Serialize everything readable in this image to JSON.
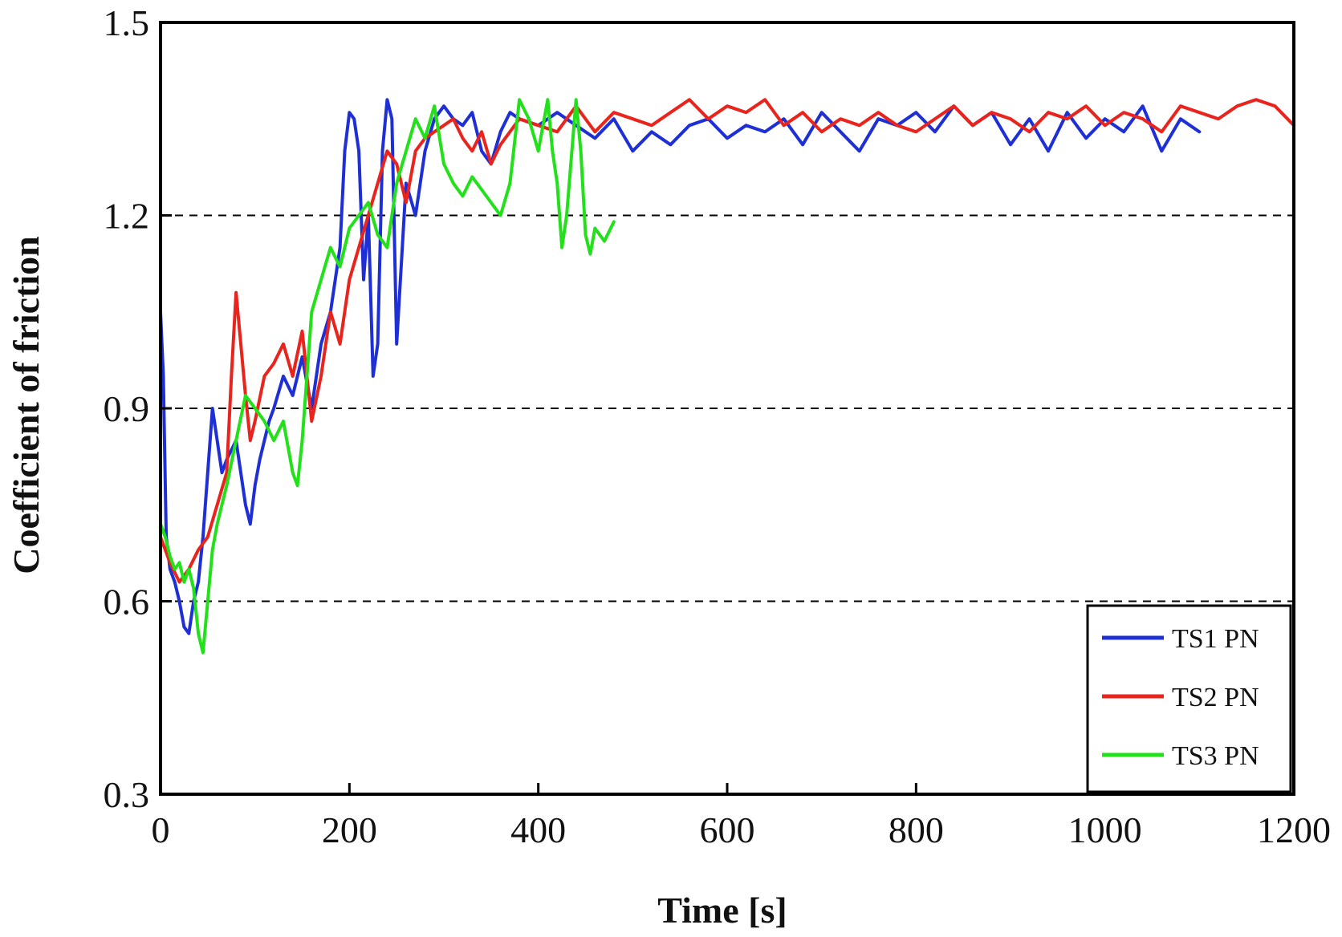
{
  "chart_data": {
    "type": "line",
    "title": "",
    "xlabel": "Time [s]",
    "ylabel": "Coefficient of friction",
    "xlim": [
      0,
      1200
    ],
    "ylim": [
      0.3,
      1.5
    ],
    "xticks": [
      0,
      200,
      400,
      600,
      800,
      1000,
      1200
    ],
    "xtick_labels": [
      "0",
      "200",
      "400",
      "600",
      "800",
      "1000",
      "1200"
    ],
    "yticks": [
      0.3,
      0.6,
      0.9,
      1.2,
      1.5
    ],
    "ytick_labels": [
      "0.3",
      "0.6",
      "0.9",
      "1.2",
      "1.5"
    ],
    "gridlines_y": [
      0.6,
      0.9,
      1.2
    ],
    "grid_style": "dashed horizontal",
    "legend_position": "bottom-right",
    "series": [
      {
        "name": "TS1 PN",
        "color": "#1f2fd6",
        "x": [
          0,
          3,
          6,
          10,
          15,
          20,
          25,
          30,
          35,
          40,
          45,
          50,
          55,
          60,
          65,
          70,
          80,
          90,
          95,
          100,
          105,
          110,
          115,
          120,
          130,
          140,
          150,
          160,
          170,
          180,
          190,
          195,
          200,
          205,
          210,
          215,
          220,
          225,
          230,
          235,
          240,
          245,
          250,
          260,
          270,
          280,
          290,
          300,
          310,
          320,
          330,
          340,
          350,
          360,
          370,
          380,
          400,
          420,
          440,
          460,
          480,
          500,
          520,
          540,
          560,
          580,
          600,
          620,
          640,
          660,
          680,
          700,
          720,
          740,
          760,
          780,
          800,
          820,
          840,
          860,
          880,
          900,
          920,
          940,
          960,
          980,
          1000,
          1020,
          1040,
          1060,
          1080,
          1100
        ],
        "y": [
          1.05,
          0.95,
          0.7,
          0.65,
          0.63,
          0.6,
          0.56,
          0.55,
          0.6,
          0.63,
          0.7,
          0.8,
          0.9,
          0.85,
          0.8,
          0.82,
          0.85,
          0.75,
          0.72,
          0.78,
          0.82,
          0.85,
          0.88,
          0.9,
          0.95,
          0.92,
          0.98,
          0.9,
          1.0,
          1.05,
          1.15,
          1.3,
          1.36,
          1.35,
          1.3,
          1.1,
          1.2,
          0.95,
          1.0,
          1.3,
          1.38,
          1.35,
          1.0,
          1.25,
          1.2,
          1.3,
          1.35,
          1.37,
          1.35,
          1.34,
          1.36,
          1.3,
          1.28,
          1.33,
          1.36,
          1.35,
          1.34,
          1.36,
          1.34,
          1.32,
          1.35,
          1.3,
          1.33,
          1.31,
          1.34,
          1.35,
          1.32,
          1.34,
          1.33,
          1.35,
          1.31,
          1.36,
          1.33,
          1.3,
          1.35,
          1.34,
          1.36,
          1.33,
          1.37,
          1.34,
          1.36,
          1.31,
          1.35,
          1.3,
          1.36,
          1.32,
          1.35,
          1.33,
          1.37,
          1.3,
          1.35,
          1.33
        ]
      },
      {
        "name": "TS2 PN",
        "color": "#e8241c",
        "x": [
          0,
          10,
          20,
          30,
          40,
          50,
          60,
          70,
          75,
          80,
          85,
          90,
          95,
          100,
          110,
          120,
          130,
          140,
          150,
          160,
          170,
          180,
          190,
          200,
          210,
          220,
          230,
          240,
          250,
          260,
          270,
          280,
          290,
          300,
          310,
          320,
          330,
          340,
          350,
          360,
          380,
          400,
          420,
          440,
          460,
          480,
          500,
          520,
          540,
          560,
          580,
          600,
          620,
          640,
          660,
          680,
          700,
          720,
          740,
          760,
          780,
          800,
          820,
          840,
          860,
          880,
          900,
          920,
          940,
          960,
          980,
          1000,
          1020,
          1040,
          1060,
          1080,
          1100,
          1120,
          1140,
          1160,
          1180,
          1200
        ],
        "y": [
          0.7,
          0.66,
          0.63,
          0.65,
          0.68,
          0.7,
          0.75,
          0.8,
          0.95,
          1.08,
          1.0,
          0.92,
          0.85,
          0.88,
          0.95,
          0.97,
          1.0,
          0.95,
          1.02,
          0.88,
          0.95,
          1.05,
          1.0,
          1.1,
          1.15,
          1.2,
          1.25,
          1.3,
          1.28,
          1.22,
          1.3,
          1.32,
          1.33,
          1.34,
          1.35,
          1.32,
          1.3,
          1.33,
          1.28,
          1.31,
          1.35,
          1.34,
          1.33,
          1.37,
          1.33,
          1.36,
          1.35,
          1.34,
          1.36,
          1.38,
          1.35,
          1.37,
          1.36,
          1.38,
          1.34,
          1.36,
          1.33,
          1.35,
          1.34,
          1.36,
          1.34,
          1.33,
          1.35,
          1.37,
          1.34,
          1.36,
          1.35,
          1.33,
          1.36,
          1.35,
          1.37,
          1.34,
          1.36,
          1.35,
          1.33,
          1.37,
          1.36,
          1.35,
          1.37,
          1.38,
          1.37,
          1.34
        ]
      },
      {
        "name": "TS3 PN",
        "color": "#22e01a",
        "x": [
          0,
          5,
          10,
          15,
          20,
          25,
          30,
          35,
          40,
          45,
          50,
          55,
          60,
          70,
          80,
          90,
          100,
          110,
          120,
          130,
          140,
          145,
          150,
          155,
          160,
          170,
          180,
          190,
          200,
          210,
          220,
          230,
          240,
          250,
          260,
          270,
          280,
          290,
          300,
          310,
          320,
          330,
          340,
          350,
          360,
          370,
          380,
          390,
          400,
          410,
          415,
          420,
          425,
          430,
          440,
          445,
          450,
          455,
          460,
          470,
          480
        ],
        "y": [
          0.72,
          0.7,
          0.67,
          0.65,
          0.66,
          0.63,
          0.65,
          0.62,
          0.55,
          0.52,
          0.6,
          0.68,
          0.72,
          0.78,
          0.85,
          0.92,
          0.9,
          0.88,
          0.85,
          0.88,
          0.8,
          0.78,
          0.85,
          0.95,
          1.05,
          1.1,
          1.15,
          1.12,
          1.18,
          1.2,
          1.22,
          1.17,
          1.15,
          1.25,
          1.3,
          1.35,
          1.32,
          1.37,
          1.28,
          1.25,
          1.23,
          1.26,
          1.24,
          1.22,
          1.2,
          1.25,
          1.38,
          1.35,
          1.3,
          1.38,
          1.3,
          1.25,
          1.15,
          1.2,
          1.38,
          1.3,
          1.17,
          1.14,
          1.18,
          1.16,
          1.19
        ]
      }
    ]
  }
}
